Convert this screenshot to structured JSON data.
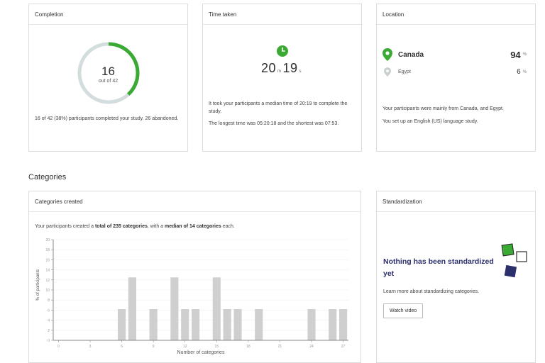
{
  "completion": {
    "title": "Completion",
    "completed": 16,
    "total": 42,
    "of_label": "out of 42",
    "summary": "16 of 42 (38%) participants completed your study. 26 abandoned.",
    "colors": {
      "ring_track": "#d3dddd",
      "ring_fill": "#3aaa35"
    }
  },
  "time": {
    "title": "Time taken",
    "icon": "clock-icon",
    "minutes": "20",
    "minutes_unit": "m",
    "seconds": "19",
    "seconds_unit": "s",
    "summary1": "It took your participants a median time of 20:19 to complete the study.",
    "summary2": "The longest time was 05:20:18 and the shortest was 07:53."
  },
  "location": {
    "title": "Location",
    "rows": [
      {
        "country": "Canada",
        "value": "94",
        "pct": "%",
        "icon": "map-pin-icon"
      },
      {
        "country": "Egypt",
        "value": "6",
        "pct": "%",
        "icon": "map-pin-icon"
      }
    ],
    "summary1": "Your participants were mainly from Canada, and Egypt.",
    "summary2": "You set up an English (US) language study."
  },
  "categories_heading": "Categories",
  "categories": {
    "title": "Categories created",
    "intro_pre": "Your participants created a ",
    "intro_total": "total of 235 categories",
    "intro_mid": ", with a ",
    "intro_median": "median of 14 categories",
    "intro_post": " each."
  },
  "standard": {
    "title": "Standardization",
    "headline": "Nothing has been standardized yet",
    "learn": "Learn more about standardizing categories.",
    "button": "Watch video",
    "colors": {
      "green": "#3aaa35",
      "navy": "#2b2f6b"
    }
  },
  "chart_data": {
    "type": "bar",
    "xlabel": "Number of categories",
    "ylabel": "% of participants",
    "ylim": [
      0,
      20
    ],
    "yticks": [
      0,
      2,
      4,
      6,
      8,
      10,
      12,
      14,
      16,
      18,
      20
    ],
    "xticks": [
      0,
      3,
      6,
      9,
      12,
      15,
      18,
      21,
      24,
      27
    ],
    "xlim": [
      -0.5,
      27.5
    ],
    "grid": true,
    "bar_color": "#cfcfcf",
    "x": [
      6,
      7,
      9,
      11,
      12,
      13,
      15,
      16,
      17,
      19,
      24,
      26,
      27
    ],
    "values": [
      6.2,
      12.5,
      6.2,
      12.5,
      6.2,
      6.2,
      12.5,
      6.2,
      6.2,
      6.2,
      6.2,
      6.2,
      6.2
    ]
  }
}
